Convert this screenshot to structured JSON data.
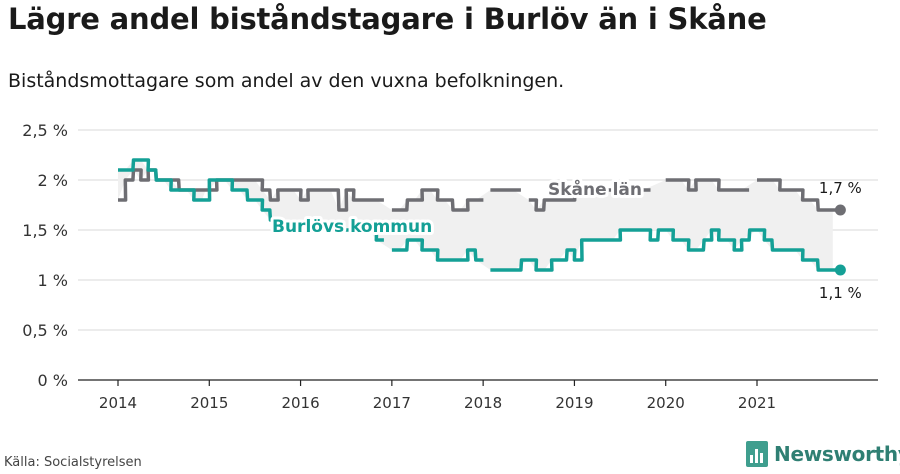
{
  "title": "Lägre andel biståndstagare i Burlöv än i Skåne",
  "subtitle": "Biståndsmottagare som andel av den vuxna befolkningen.",
  "source": "Källa: Socialstyrelsen",
  "brand": "Newsworthy",
  "colors": {
    "burlov": "#14a096",
    "skane": "#6e6e73",
    "band": "#f0f0f0",
    "grid": "#d9d9d9"
  },
  "chart_data": {
    "type": "line",
    "ylim": [
      0,
      2.5
    ],
    "xlim": [
      2013.9,
      2022.1
    ],
    "yticks": [
      {
        "v": 0,
        "label": "0 %"
      },
      {
        "v": 0.5,
        "label": "0,5 %"
      },
      {
        "v": 1,
        "label": "1 %"
      },
      {
        "v": 1.5,
        "label": "1,5 %"
      },
      {
        "v": 2,
        "label": "2 %"
      },
      {
        "v": 2.5,
        "label": "2,5 %"
      }
    ],
    "xticks": [
      {
        "v": 2014,
        "label": "2014"
      },
      {
        "v": 2015,
        "label": "2015"
      },
      {
        "v": 2016,
        "label": "2016"
      },
      {
        "v": 2017,
        "label": "2017"
      },
      {
        "v": 2018,
        "label": "2018"
      },
      {
        "v": 2019,
        "label": "2019"
      },
      {
        "v": 2020,
        "label": "2020"
      },
      {
        "v": 2021,
        "label": "2021"
      }
    ],
    "series": [
      {
        "name": "Skåne län",
        "color": "#6e6e73",
        "end_label": "1,7 %",
        "data": [
          [
            2014.0,
            1.8
          ],
          [
            2014.08,
            2.0
          ],
          [
            2014.17,
            2.1
          ],
          [
            2014.25,
            2.0
          ],
          [
            2014.33,
            2.1
          ],
          [
            2014.42,
            2.0
          ],
          [
            2014.5,
            2.0
          ],
          [
            2014.58,
            2.0
          ],
          [
            2014.67,
            1.9
          ],
          [
            2014.75,
            1.9
          ],
          [
            2014.83,
            1.9
          ],
          [
            2014.92,
            1.9
          ],
          [
            2015.0,
            1.9
          ],
          [
            2015.08,
            2.0
          ],
          [
            2015.17,
            2.0
          ],
          [
            2015.25,
            2.0
          ],
          [
            2015.33,
            2.0
          ],
          [
            2015.42,
            2.0
          ],
          [
            2015.5,
            2.0
          ],
          [
            2015.58,
            1.9
          ],
          [
            2015.67,
            1.8
          ],
          [
            2015.75,
            1.9
          ],
          [
            2015.83,
            1.9
          ],
          [
            2015.92,
            1.9
          ],
          [
            2016.0,
            1.8
          ],
          [
            2016.08,
            1.9
          ],
          [
            2016.17,
            1.9
          ],
          [
            2016.25,
            1.9
          ],
          [
            2016.33,
            1.9
          ],
          [
            2016.42,
            1.7
          ],
          [
            2016.5,
            1.9
          ],
          [
            2016.58,
            1.8
          ],
          [
            2016.67,
            1.8
          ],
          [
            2016.75,
            1.8
          ],
          [
            2016.83,
            1.8
          ],
          [
            2016.92,
            null
          ],
          [
            2017.0,
            1.7
          ],
          [
            2017.08,
            1.7
          ],
          [
            2017.17,
            1.8
          ],
          [
            2017.25,
            1.8
          ],
          [
            2017.33,
            1.9
          ],
          [
            2017.42,
            1.9
          ],
          [
            2017.5,
            1.8
          ],
          [
            2017.58,
            1.8
          ],
          [
            2017.67,
            1.7
          ],
          [
            2017.75,
            1.7
          ],
          [
            2017.83,
            1.8
          ],
          [
            2017.92,
            1.8
          ],
          [
            2018.0,
            null
          ],
          [
            2018.08,
            1.9
          ],
          [
            2018.17,
            1.9
          ],
          [
            2018.25,
            1.9
          ],
          [
            2018.33,
            1.9
          ],
          [
            2018.42,
            null
          ],
          [
            2018.5,
            1.8
          ],
          [
            2018.58,
            1.7
          ],
          [
            2018.67,
            1.8
          ],
          [
            2018.75,
            1.8
          ],
          [
            2018.83,
            1.8
          ],
          [
            2018.92,
            1.8
          ],
          [
            2019.0,
            1.9
          ],
          [
            2019.08,
            1.9
          ],
          [
            2019.17,
            1.9
          ],
          [
            2019.25,
            1.9
          ],
          [
            2019.33,
            1.9
          ],
          [
            2019.42,
            1.9
          ],
          [
            2019.5,
            1.9
          ],
          [
            2019.58,
            1.9
          ],
          [
            2019.67,
            1.9
          ],
          [
            2019.75,
            1.9
          ],
          [
            2019.83,
            null
          ],
          [
            2019.92,
            null
          ],
          [
            2020.0,
            2.0
          ],
          [
            2020.08,
            2.0
          ],
          [
            2020.17,
            2.0
          ],
          [
            2020.25,
            1.9
          ],
          [
            2020.33,
            2.0
          ],
          [
            2020.42,
            2.0
          ],
          [
            2020.5,
            2.0
          ],
          [
            2020.58,
            1.9
          ],
          [
            2020.67,
            1.9
          ],
          [
            2020.75,
            1.9
          ],
          [
            2020.83,
            1.9
          ],
          [
            2020.92,
            null
          ],
          [
            2021.0,
            2.0
          ],
          [
            2021.08,
            2.0
          ],
          [
            2021.17,
            2.0
          ],
          [
            2021.25,
            1.9
          ],
          [
            2021.33,
            1.9
          ],
          [
            2021.42,
            1.9
          ],
          [
            2021.5,
            1.8
          ],
          [
            2021.58,
            1.8
          ],
          [
            2021.67,
            1.7
          ],
          [
            2021.75,
            1.7
          ],
          [
            2021.83,
            1.7
          ]
        ]
      },
      {
        "name": "Burlövs kommun",
        "color": "#14a096",
        "end_label": "1,1 %",
        "data": [
          [
            2014.0,
            2.1
          ],
          [
            2014.08,
            2.1
          ],
          [
            2014.17,
            2.2
          ],
          [
            2014.25,
            2.2
          ],
          [
            2014.33,
            2.1
          ],
          [
            2014.42,
            2.0
          ],
          [
            2014.5,
            2.0
          ],
          [
            2014.58,
            1.9
          ],
          [
            2014.67,
            1.9
          ],
          [
            2014.75,
            1.9
          ],
          [
            2014.83,
            1.8
          ],
          [
            2014.92,
            1.8
          ],
          [
            2015.0,
            2.0
          ],
          [
            2015.08,
            2.0
          ],
          [
            2015.17,
            2.0
          ],
          [
            2015.25,
            1.9
          ],
          [
            2015.33,
            1.9
          ],
          [
            2015.42,
            1.8
          ],
          [
            2015.5,
            1.8
          ],
          [
            2015.58,
            1.7
          ],
          [
            2015.67,
            1.6
          ],
          [
            2015.75,
            1.5
          ],
          [
            2015.83,
            1.5
          ],
          [
            2015.92,
            1.5
          ],
          [
            2016.0,
            1.5
          ],
          [
            2016.08,
            1.5
          ],
          [
            2016.17,
            1.5
          ],
          [
            2016.25,
            1.5
          ],
          [
            2016.33,
            1.5
          ],
          [
            2016.42,
            1.5
          ],
          [
            2016.5,
            1.5
          ],
          [
            2016.58,
            1.5
          ],
          [
            2016.67,
            1.5
          ],
          [
            2016.75,
            1.5
          ],
          [
            2016.83,
            1.4
          ],
          [
            2016.92,
            null
          ],
          [
            2017.0,
            1.3
          ],
          [
            2017.08,
            1.3
          ],
          [
            2017.17,
            1.4
          ],
          [
            2017.25,
            1.4
          ],
          [
            2017.33,
            1.3
          ],
          [
            2017.42,
            1.3
          ],
          [
            2017.5,
            1.2
          ],
          [
            2017.58,
            1.2
          ],
          [
            2017.67,
            1.2
          ],
          [
            2017.75,
            1.2
          ],
          [
            2017.83,
            1.3
          ],
          [
            2017.92,
            1.2
          ],
          [
            2018.0,
            null
          ],
          [
            2018.08,
            1.1
          ],
          [
            2018.17,
            1.1
          ],
          [
            2018.25,
            1.1
          ],
          [
            2018.33,
            1.1
          ],
          [
            2018.42,
            1.2
          ],
          [
            2018.5,
            1.2
          ],
          [
            2018.58,
            1.1
          ],
          [
            2018.67,
            1.1
          ],
          [
            2018.75,
            1.2
          ],
          [
            2018.83,
            1.2
          ],
          [
            2018.92,
            1.3
          ],
          [
            2019.0,
            1.2
          ],
          [
            2019.08,
            1.4
          ],
          [
            2019.17,
            1.4
          ],
          [
            2019.25,
            1.4
          ],
          [
            2019.33,
            1.4
          ],
          [
            2019.42,
            1.4
          ],
          [
            2019.5,
            1.5
          ],
          [
            2019.58,
            1.5
          ],
          [
            2019.67,
            1.5
          ],
          [
            2019.75,
            1.5
          ],
          [
            2019.83,
            1.4
          ],
          [
            2019.92,
            1.5
          ],
          [
            2020.0,
            1.5
          ],
          [
            2020.08,
            1.4
          ],
          [
            2020.17,
            1.4
          ],
          [
            2020.25,
            1.3
          ],
          [
            2020.33,
            1.3
          ],
          [
            2020.42,
            1.4
          ],
          [
            2020.5,
            1.5
          ],
          [
            2020.58,
            1.4
          ],
          [
            2020.67,
            1.4
          ],
          [
            2020.75,
            1.3
          ],
          [
            2020.83,
            1.4
          ],
          [
            2020.92,
            1.5
          ],
          [
            2021.0,
            1.5
          ],
          [
            2021.08,
            1.4
          ],
          [
            2021.17,
            1.3
          ],
          [
            2021.25,
            1.3
          ],
          [
            2021.33,
            1.3
          ],
          [
            2021.42,
            1.3
          ],
          [
            2021.5,
            1.2
          ],
          [
            2021.58,
            1.2
          ],
          [
            2021.67,
            1.1
          ],
          [
            2021.75,
            1.1
          ],
          [
            2021.83,
            1.1
          ]
        ]
      }
    ]
  }
}
